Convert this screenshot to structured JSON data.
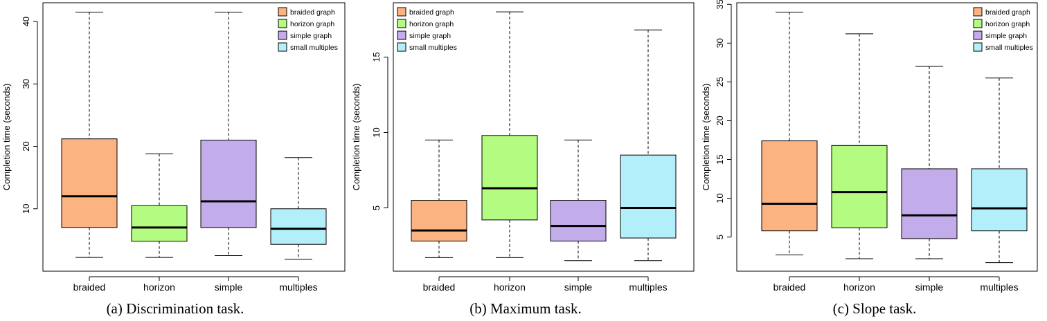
{
  "colors": {
    "braided": "#fbb382",
    "horizon": "#b4fb81",
    "simple": "#c3acea",
    "multiples": "#b3eefb"
  },
  "chart_data": [
    {
      "type": "box",
      "caption": "(a)  Discrimination task.",
      "ylabel": "Completion time (seconds)",
      "ylim": [
        0,
        43
      ],
      "yticks": [
        10,
        20,
        30,
        40
      ],
      "categories": [
        "braided",
        "horizon",
        "simple",
        "multiples"
      ],
      "boxes": [
        {
          "min": 2.2,
          "q1": 7.0,
          "median": 12.0,
          "q3": 21.2,
          "max": 41.5
        },
        {
          "min": 2.2,
          "q1": 4.8,
          "median": 7.0,
          "q3": 10.5,
          "max": 18.8
        },
        {
          "min": 2.5,
          "q1": 7.0,
          "median": 11.2,
          "q3": 21.0,
          "max": 41.5
        },
        {
          "min": 1.9,
          "q1": 4.3,
          "median": 6.8,
          "q3": 10.0,
          "max": 18.2
        }
      ],
      "legend": [
        "braided graph",
        "horizon graph",
        "simple graph",
        "small multiples"
      ],
      "legend_position": "top-right"
    },
    {
      "type": "box",
      "caption": "(b)  Maximum task.",
      "ylabel": "Completion time (seconds)",
      "ylim": [
        0.8,
        18.6
      ],
      "yticks": [
        5,
        10,
        15
      ],
      "categories": [
        "braided",
        "horizon",
        "simple",
        "multiples"
      ],
      "boxes": [
        {
          "min": 1.7,
          "q1": 2.8,
          "median": 3.5,
          "q3": 5.5,
          "max": 9.5
        },
        {
          "min": 1.7,
          "q1": 4.2,
          "median": 6.3,
          "q3": 9.8,
          "max": 18.0
        },
        {
          "min": 1.5,
          "q1": 2.8,
          "median": 3.8,
          "q3": 5.5,
          "max": 9.5
        },
        {
          "min": 1.5,
          "q1": 3.0,
          "median": 5.0,
          "q3": 8.5,
          "max": 16.8
        }
      ],
      "legend": [
        "braided graph",
        "horizon graph",
        "simple graph",
        "small multiples"
      ],
      "legend_position": "top-left"
    },
    {
      "type": "box",
      "caption": "(c)  Slope task.",
      "ylabel": "Completion time (seconds)",
      "ylim": [
        0.6,
        35.2
      ],
      "yticks": [
        5,
        10,
        15,
        20,
        25,
        30,
        35
      ],
      "categories": [
        "braided",
        "horizon",
        "simple",
        "multiples"
      ],
      "boxes": [
        {
          "min": 2.7,
          "q1": 5.8,
          "median": 9.3,
          "q3": 17.4,
          "max": 34.0
        },
        {
          "min": 2.2,
          "q1": 6.2,
          "median": 10.8,
          "q3": 16.8,
          "max": 31.2
        },
        {
          "min": 2.2,
          "q1": 4.8,
          "median": 7.8,
          "q3": 13.8,
          "max": 27.0
        },
        {
          "min": 1.7,
          "q1": 5.8,
          "median": 8.7,
          "q3": 13.8,
          "max": 25.5
        }
      ],
      "legend": [
        "braided graph",
        "horizon graph",
        "simple graph",
        "small multiples"
      ],
      "legend_position": "top-right"
    }
  ]
}
